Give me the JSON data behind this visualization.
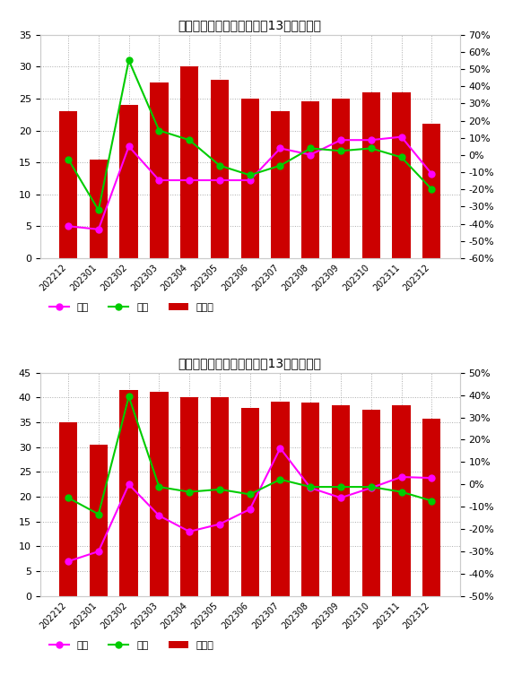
{
  "chart1": {
    "title": "中国棕刚玉全部生产商过去13个月开工率",
    "categories": [
      "202212",
      "202301",
      "202302",
      "202303",
      "202304",
      "202305",
      "202306",
      "202307",
      "202308",
      "202309",
      "202310",
      "202311",
      "202312"
    ],
    "bar_values": [
      23.0,
      15.5,
      24.0,
      27.5,
      30.0,
      28.0,
      25.0,
      23.0,
      24.5,
      25.0,
      26.0,
      26.0,
      21.0
    ],
    "yoy_values": [
      5.0,
      4.5,
      17.5,
      12.2,
      12.2,
      12.2,
      12.2,
      17.2,
      16.2,
      18.5,
      18.5,
      19.0,
      13.2
    ],
    "mom_values": [
      15.5,
      7.5,
      31.0,
      20.0,
      18.5,
      14.5,
      13.0,
      14.5,
      17.2,
      16.8,
      17.2,
      15.8,
      10.8
    ],
    "ylim_left": [
      0,
      35
    ],
    "ylim_right": [
      -60,
      70
    ],
    "yticks_left": [
      0,
      5,
      10,
      15,
      20,
      25,
      30,
      35
    ],
    "yticks_right": [
      -60,
      -50,
      -40,
      -30,
      -20,
      -10,
      0,
      10,
      20,
      30,
      40,
      50,
      60,
      70
    ],
    "ytick_right_labels": [
      "-60%",
      "-50%",
      "-40%",
      "-30%",
      "-20%",
      "-10%",
      "0%",
      "10%",
      "20%",
      "30%",
      "40%",
      "50%",
      "60%",
      "70%"
    ]
  },
  "chart2": {
    "title": "中国棕刚玉在产生产商过去13个月开工率",
    "categories": [
      "202212",
      "202301",
      "202302",
      "202303",
      "202304",
      "202305",
      "202306",
      "202307",
      "202308",
      "202309",
      "202310",
      "202311",
      "202312"
    ],
    "bar_values": [
      35.0,
      30.5,
      41.5,
      41.2,
      40.0,
      40.0,
      38.0,
      39.2,
      39.0,
      38.5,
      37.5,
      38.5,
      35.8
    ],
    "yoy_values": [
      7.0,
      9.0,
      22.5,
      16.2,
      13.0,
      14.5,
      17.5,
      29.8,
      21.8,
      19.8,
      21.8,
      24.0,
      23.8
    ],
    "mom_values": [
      19.8,
      16.5,
      40.2,
      22.0,
      21.0,
      21.5,
      20.5,
      23.5,
      22.0,
      22.0,
      22.0,
      21.0,
      19.2
    ],
    "ylim_left": [
      0,
      45
    ],
    "ylim_right": [
      -50,
      50
    ],
    "yticks_left": [
      0,
      5,
      10,
      15,
      20,
      25,
      30,
      35,
      40,
      45
    ],
    "yticks_right": [
      -50,
      -40,
      -30,
      -20,
      -10,
      0,
      10,
      20,
      30,
      40,
      50
    ],
    "ytick_right_labels": [
      "-50%",
      "-40%",
      "-30%",
      "-20%",
      "-10%",
      "0%",
      "10%",
      "20%",
      "30%",
      "40%",
      "50%"
    ]
  },
  "bar_color": "#CC0000",
  "yoy_color": "#FF00FF",
  "mom_color": "#00CC00",
  "legend_labels": [
    "同比",
    "环比",
    "开工率"
  ],
  "background_color": "#FFFFFF",
  "grid_color": "#AAAAAA"
}
